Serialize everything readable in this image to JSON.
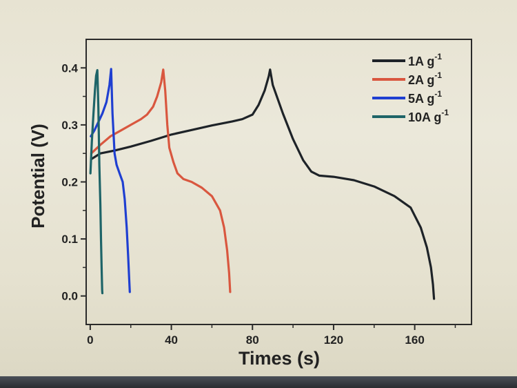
{
  "chart_data": {
    "type": "line",
    "xlabel": "Times (s)",
    "ylabel": "Potential (V)",
    "xlim": [
      -2,
      188
    ],
    "ylim": [
      -0.05,
      0.45
    ],
    "x_ticks": [
      "0",
      "40",
      "80",
      "120",
      "160"
    ],
    "y_ticks": [
      "0.0",
      "0.1",
      "0.2",
      "0.3",
      "0.4"
    ],
    "legend_position": "top-right",
    "series": [
      {
        "name": "1A g",
        "sup": "-1",
        "color": "#1e2328",
        "points": [
          [
            0.5,
            0.24
          ],
          [
            5,
            0.25
          ],
          [
            12,
            0.255
          ],
          [
            20,
            0.262
          ],
          [
            30,
            0.272
          ],
          [
            40,
            0.283
          ],
          [
            50,
            0.291
          ],
          [
            60,
            0.299
          ],
          [
            70,
            0.306
          ],
          [
            75,
            0.31
          ],
          [
            80,
            0.318
          ],
          [
            83,
            0.335
          ],
          [
            86,
            0.36
          ],
          [
            88,
            0.385
          ],
          [
            88.7,
            0.397
          ],
          [
            90,
            0.37
          ],
          [
            95,
            0.32
          ],
          [
            100,
            0.275
          ],
          [
            105,
            0.238
          ],
          [
            109,
            0.218
          ],
          [
            113,
            0.211
          ],
          [
            120,
            0.209
          ],
          [
            130,
            0.203
          ],
          [
            140,
            0.192
          ],
          [
            150,
            0.175
          ],
          [
            158,
            0.155
          ],
          [
            163,
            0.12
          ],
          [
            166,
            0.085
          ],
          [
            168,
            0.05
          ],
          [
            169,
            0.02
          ],
          [
            169.5,
            -0.005
          ]
        ]
      },
      {
        "name": "2A g",
        "sup": "-1",
        "color": "#d9573f",
        "points": [
          [
            0.5,
            0.25
          ],
          [
            5,
            0.265
          ],
          [
            10,
            0.28
          ],
          [
            15,
            0.29
          ],
          [
            20,
            0.3
          ],
          [
            25,
            0.31
          ],
          [
            28,
            0.318
          ],
          [
            31,
            0.332
          ],
          [
            33,
            0.35
          ],
          [
            35,
            0.375
          ],
          [
            36,
            0.397
          ],
          [
            37,
            0.36
          ],
          [
            38,
            0.3
          ],
          [
            39,
            0.26
          ],
          [
            41,
            0.235
          ],
          [
            43,
            0.215
          ],
          [
            46,
            0.205
          ],
          [
            50,
            0.2
          ],
          [
            55,
            0.19
          ],
          [
            60,
            0.175
          ],
          [
            64,
            0.15
          ],
          [
            66,
            0.12
          ],
          [
            67.5,
            0.08
          ],
          [
            68.5,
            0.04
          ],
          [
            69,
            0.007
          ]
        ]
      },
      {
        "name": "5A g",
        "sup": "-1",
        "color": "#1f3fd1",
        "points": [
          [
            0.3,
            0.28
          ],
          [
            2,
            0.29
          ],
          [
            4,
            0.305
          ],
          [
            6,
            0.32
          ],
          [
            8,
            0.34
          ],
          [
            9.5,
            0.37
          ],
          [
            10.3,
            0.398
          ],
          [
            11,
            0.32
          ],
          [
            12,
            0.25
          ],
          [
            13,
            0.23
          ],
          [
            14.5,
            0.215
          ],
          [
            16,
            0.2
          ],
          [
            17,
            0.17
          ],
          [
            18,
            0.12
          ],
          [
            18.7,
            0.07
          ],
          [
            19.2,
            0.03
          ],
          [
            19.5,
            0.007
          ]
        ]
      },
      {
        "name": "10A g",
        "sup": "-1",
        "color": "#1e6468",
        "points": [
          [
            0.1,
            0.215
          ],
          [
            0.8,
            0.27
          ],
          [
            1.6,
            0.32
          ],
          [
            2.3,
            0.36
          ],
          [
            2.9,
            0.386
          ],
          [
            3.5,
            0.396
          ],
          [
            4,
            0.33
          ],
          [
            4.5,
            0.23
          ],
          [
            5,
            0.16
          ],
          [
            5.3,
            0.1
          ],
          [
            5.6,
            0.05
          ],
          [
            5.9,
            0.01
          ],
          [
            6,
            0.005
          ]
        ]
      }
    ]
  }
}
